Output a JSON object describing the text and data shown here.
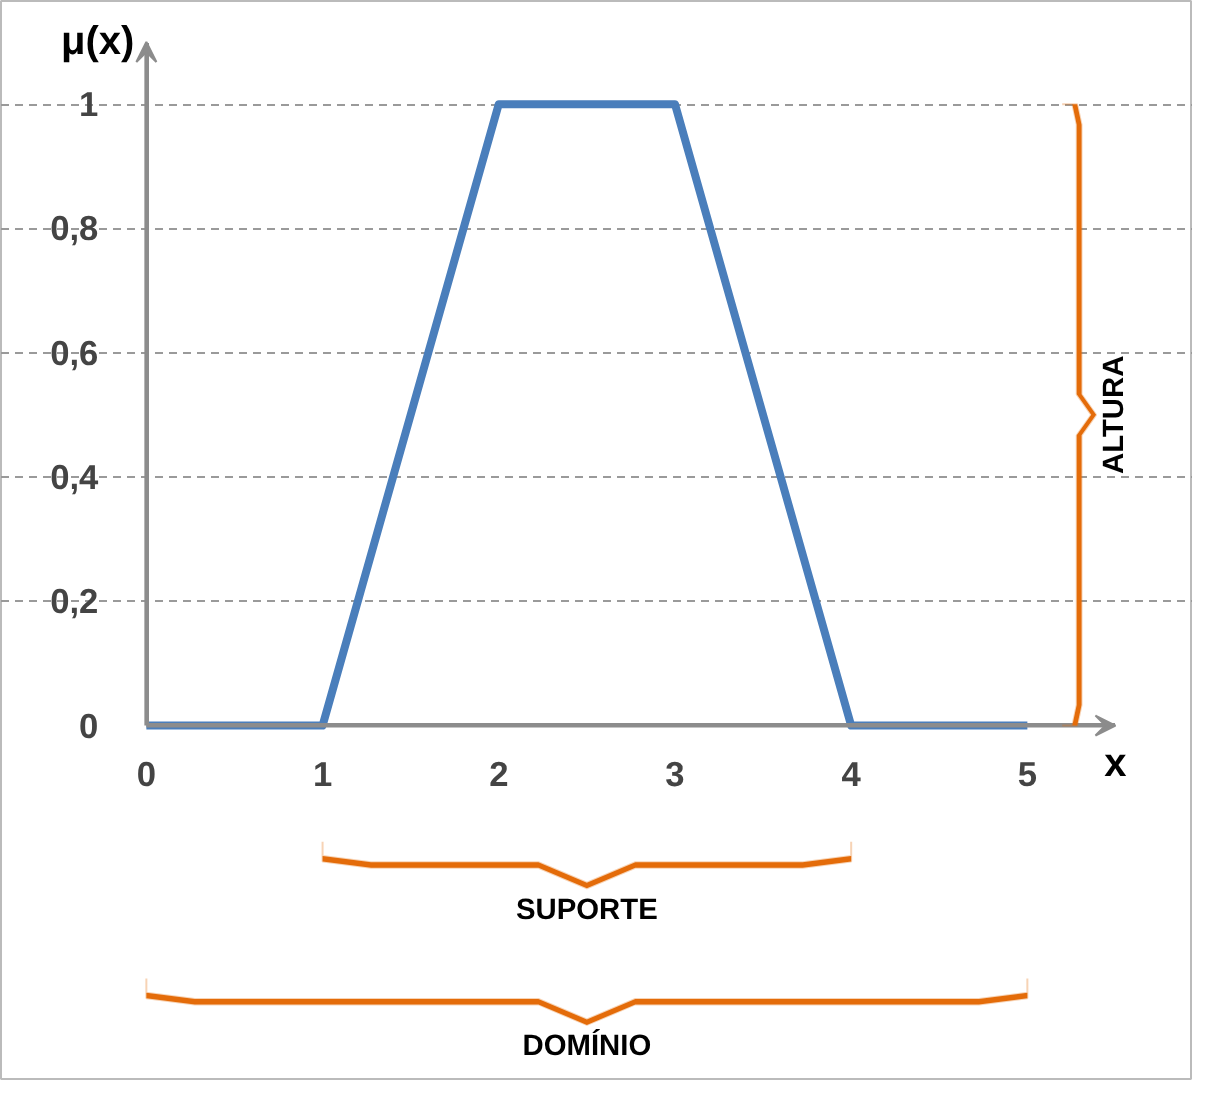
{
  "chart_data": {
    "type": "line",
    "xlabel": "x",
    "ylabel": "μ(x)",
    "x": [
      0,
      1,
      2,
      3,
      4,
      5
    ],
    "series": [
      {
        "color": "#4a7ebb",
        "values": [
          0,
          0,
          1,
          1,
          0,
          0
        ]
      }
    ],
    "xlim": [
      0,
      5.5
    ],
    "ylim": [
      0,
      1.1
    ],
    "xticks": [
      0,
      1,
      2,
      3,
      4,
      5
    ],
    "yticks": [
      0,
      {
        "value": 0.2,
        "label": "0,2"
      },
      {
        "value": 0.4,
        "label": "0,4"
      },
      {
        "value": 0.6,
        "label": "0,6"
      },
      {
        "value": 0.8,
        "label": "0,8"
      },
      1
    ],
    "grid": "y",
    "marker": "none",
    "line_style": "solid",
    "annotations": [
      "ALTURA",
      "SUPORTE",
      "DOMÍNIO"
    ]
  }
}
